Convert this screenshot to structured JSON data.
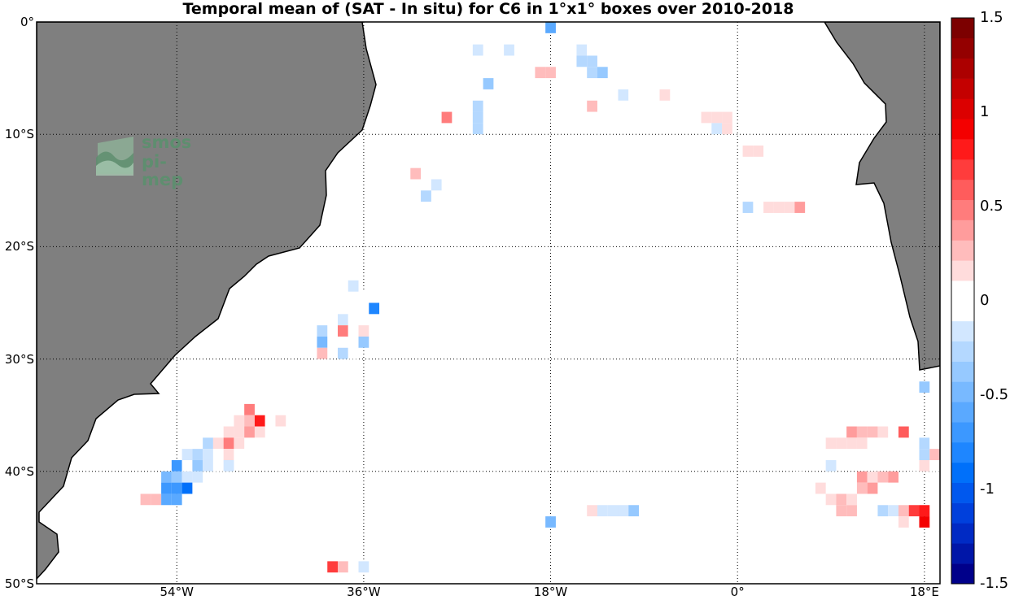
{
  "title": "Temporal mean of (SAT - In situ) for C6 in 1°x1° boxes over 2010-2018",
  "logo": {
    "line1": "smos",
    "line2": "pi-mep"
  },
  "axes": {
    "lat_ticks": [
      {
        "value": 0,
        "label": "0°"
      },
      {
        "value": -10,
        "label": "10°S"
      },
      {
        "value": -20,
        "label": "20°S"
      },
      {
        "value": -30,
        "label": "30°S"
      },
      {
        "value": -40,
        "label": "40°S"
      },
      {
        "value": -50,
        "label": "50°S"
      }
    ],
    "lon_ticks": [
      {
        "value": -54,
        "label": "54°W"
      },
      {
        "value": -36,
        "label": "36°W"
      },
      {
        "value": -18,
        "label": "18°W"
      },
      {
        "value": 0,
        "label": "0°"
      },
      {
        "value": 18,
        "label": "18°E"
      }
    ],
    "lon_range": [
      -67.5,
      19.5
    ],
    "lat_range": [
      -50,
      0
    ],
    "grid": true
  },
  "colorbar": {
    "range": [
      -1.5,
      1.5
    ],
    "ticks": [
      {
        "value": 1.5,
        "label": "1.5"
      },
      {
        "value": 1,
        "label": "1"
      },
      {
        "value": 0.5,
        "label": "0.5"
      },
      {
        "value": 0,
        "label": "0"
      },
      {
        "value": -0.5,
        "label": "-0.5"
      },
      {
        "value": -1,
        "label": "-1"
      },
      {
        "value": -1.5,
        "label": "-1.5"
      }
    ],
    "colors": [
      "#00008a",
      "#0016a8",
      "#002ac4",
      "#0040dc",
      "#0058ee",
      "#0070fa",
      "#1e86ff",
      "#3c98ff",
      "#5aa9ff",
      "#78b9ff",
      "#96c9ff",
      "#b4d8ff",
      "#d2e7ff",
      "#ffffff",
      "#ffffff",
      "#ffdcdc",
      "#ffbcbc",
      "#ff9c9c",
      "#ff7c7c",
      "#ff5c5c",
      "#ff3c3c",
      "#ff1a1a",
      "#f40000",
      "#dc0000",
      "#c40000",
      "#ac0000",
      "#940000",
      "#7c0000"
    ]
  },
  "chart_data": {
    "type": "heatmap",
    "title": "Temporal mean of (SAT - In situ) for C6 in 1°x1° boxes over 2010-2018",
    "xlabel": "",
    "ylabel": "",
    "units": "",
    "xlim": [
      -67.5,
      19.5
    ],
    "ylim": [
      -50,
      0
    ],
    "cells": [
      [
        -18,
        -0.5,
        -0.6
      ],
      [
        -24,
        -1.5,
        -0.1
      ],
      [
        -20,
        -1.5,
        -0.1
      ],
      [
        -16,
        -1.5,
        -0.1
      ],
      [
        -14,
        -1.5,
        -0.1
      ],
      [
        -25,
        -2.5,
        -0.2
      ],
      [
        -22,
        -2.5,
        -0.15
      ],
      [
        -15,
        -2.5,
        -0.2
      ],
      [
        -14,
        -2.5,
        -0.1
      ],
      [
        -26,
        -3.5,
        -0.1
      ],
      [
        -15,
        -3.5,
        -0.3
      ],
      [
        -14,
        -3.5,
        -0.3
      ],
      [
        -11,
        -3.5,
        0.1
      ],
      [
        -19,
        -4.5,
        0.3
      ],
      [
        -18,
        -4.5,
        0.3
      ],
      [
        -14,
        -4.5,
        -0.3
      ],
      [
        -13,
        -4.5,
        -0.4
      ],
      [
        -11,
        -4.5,
        0.1
      ],
      [
        -9,
        -4.5,
        -0.1
      ],
      [
        -24,
        -5.5,
        -0.4
      ],
      [
        -23,
        -6.5,
        -0.1
      ],
      [
        -11,
        -6.5,
        -0.2
      ],
      [
        -10,
        -6.5,
        -0.1
      ],
      [
        -7,
        -6.5,
        0.2
      ],
      [
        -25,
        -7.5,
        -0.3
      ],
      [
        -14,
        -7.5,
        0.3
      ],
      [
        -28,
        -8.5,
        0.5
      ],
      [
        -25,
        -8.5,
        -0.3
      ],
      [
        -3,
        -8.5,
        0.15
      ],
      [
        -2,
        -8.5,
        0.15
      ],
      [
        -1,
        -8.5,
        0.15
      ],
      [
        -25,
        -9.5,
        -0.3
      ],
      [
        -2,
        -9.5,
        -0.15
      ],
      [
        -1,
        -9.5,
        0.15
      ],
      [
        -30,
        -11.5,
        -0.1
      ],
      [
        1,
        -11.5,
        0.15
      ],
      [
        2,
        -11.5,
        0.15
      ],
      [
        -31,
        -13.5,
        0.3
      ],
      [
        -29,
        -14.5,
        -0.2
      ],
      [
        -30,
        -15.5,
        -0.3
      ],
      [
        1,
        -16.5,
        -0.3
      ],
      [
        3,
        -16.5,
        0.15
      ],
      [
        4,
        -16.5,
        0.15
      ],
      [
        5,
        -16.5,
        0.2
      ],
      [
        6,
        -16.5,
        0.4
      ],
      [
        -37,
        -23.5,
        -0.2
      ],
      [
        -36,
        -24.5,
        -0.1
      ],
      [
        -36,
        -25.5,
        -0.1
      ],
      [
        -35,
        -25.5,
        -0.8
      ],
      [
        -38,
        -26.5,
        -0.15
      ],
      [
        -37,
        -26.5,
        0.1
      ],
      [
        -36,
        -26.5,
        -0.1
      ],
      [
        -40,
        -27.5,
        -0.3
      ],
      [
        -38,
        -27.5,
        0.45
      ],
      [
        -37,
        -27.5,
        -0.1
      ],
      [
        -36,
        -27.5,
        0.15
      ],
      [
        -40,
        -28.5,
        -0.5
      ],
      [
        -37,
        -28.5,
        -0.1
      ],
      [
        -36,
        -28.5,
        -0.4
      ],
      [
        -40,
        -29.5,
        0.3
      ],
      [
        -38,
        -29.5,
        -0.3
      ],
      [
        -37,
        -29.5,
        -0.1
      ],
      [
        18,
        -32.5,
        -0.4
      ],
      [
        -47,
        -34.5,
        0.5
      ],
      [
        -48,
        -35.5,
        0.2
      ],
      [
        -47,
        -35.5,
        0.25
      ],
      [
        -46,
        -35.5,
        0.85
      ],
      [
        -45,
        -35.5,
        0.1
      ],
      [
        -44,
        -35.5,
        0.15
      ],
      [
        -50,
        -36.5,
        0.1
      ],
      [
        -49,
        -36.5,
        0.2
      ],
      [
        -48,
        -36.5,
        0.2
      ],
      [
        -47,
        -36.5,
        0.35
      ],
      [
        -46,
        -36.5,
        0.2
      ],
      [
        11,
        -36.5,
        0.4
      ],
      [
        12,
        -36.5,
        0.3
      ],
      [
        13,
        -36.5,
        0.3
      ],
      [
        14,
        -36.5,
        0.15
      ],
      [
        16,
        -36.5,
        0.6
      ],
      [
        -51,
        -37.5,
        -0.3
      ],
      [
        -50,
        -37.5,
        0.2
      ],
      [
        -49,
        -37.5,
        0.5
      ],
      [
        -48,
        -37.5,
        0.2
      ],
      [
        -46,
        -37.5,
        -0.1
      ],
      [
        9,
        -37.5,
        0.2
      ],
      [
        10,
        -37.5,
        0.2
      ],
      [
        11,
        -37.5,
        0.2
      ],
      [
        12,
        -37.5,
        0.15
      ],
      [
        13,
        -37.5,
        0.1
      ],
      [
        15,
        -37.5,
        0.1
      ],
      [
        18,
        -37.5,
        -0.3
      ],
      [
        19,
        -37.5,
        -0.1
      ],
      [
        -53,
        -38.5,
        -0.2
      ],
      [
        -52,
        -38.5,
        -0.3
      ],
      [
        -51,
        -38.5,
        -0.2
      ],
      [
        -50,
        -38.5,
        0.1
      ],
      [
        -49,
        -38.5,
        0.15
      ],
      [
        -48,
        -38.5,
        0.1
      ],
      [
        18,
        -38.5,
        -0.3
      ],
      [
        19,
        -38.5,
        0.3
      ],
      [
        -54,
        -39.5,
        -0.7
      ],
      [
        -53,
        -39.5,
        -0.1
      ],
      [
        -52,
        -39.5,
        -0.4
      ],
      [
        -51,
        -39.5,
        -0.2
      ],
      [
        -50,
        -39.5,
        -0.1
      ],
      [
        -49,
        -39.5,
        -0.2
      ],
      [
        9,
        -39.5,
        -0.2
      ],
      [
        18,
        -39.5,
        0.2
      ],
      [
        19,
        -39.5,
        -0.1
      ],
      [
        -55,
        -40.5,
        -0.5
      ],
      [
        -54,
        -40.5,
        -0.4
      ],
      [
        -53,
        -40.5,
        -0.2
      ],
      [
        -52,
        -40.5,
        -0.2
      ],
      [
        6,
        -40.5,
        -0.1
      ],
      [
        12,
        -40.5,
        0.4
      ],
      [
        13,
        -40.5,
        0.2
      ],
      [
        14,
        -40.5,
        0.3
      ],
      [
        15,
        -40.5,
        0.4
      ],
      [
        17,
        -40.5,
        -0.1
      ],
      [
        -55,
        -41.5,
        -0.7
      ],
      [
        -54,
        -41.5,
        -0.7
      ],
      [
        -53,
        -41.5,
        -0.95
      ],
      [
        8,
        -41.5,
        0.15
      ],
      [
        12,
        -41.5,
        0.25
      ],
      [
        13,
        -41.5,
        0.4
      ],
      [
        14,
        -41.5,
        0.1
      ],
      [
        -57,
        -42.5,
        0.3
      ],
      [
        -56,
        -42.5,
        0.3
      ],
      [
        -55,
        -42.5,
        -0.6
      ],
      [
        -54,
        -42.5,
        -0.6
      ],
      [
        9,
        -42.5,
        0.2
      ],
      [
        10,
        -42.5,
        0.3
      ],
      [
        11,
        -42.5,
        0.15
      ],
      [
        -14,
        -43.5,
        0.2
      ],
      [
        -13,
        -43.5,
        -0.2
      ],
      [
        -12,
        -43.5,
        -0.15
      ],
      [
        -11,
        -43.5,
        -0.15
      ],
      [
        -10,
        -43.5,
        -0.4
      ],
      [
        10,
        -43.5,
        0.3
      ],
      [
        11,
        -43.5,
        0.3
      ],
      [
        14,
        -43.5,
        -0.3
      ],
      [
        15,
        -43.5,
        -0.2
      ],
      [
        16,
        -43.5,
        0.3
      ],
      [
        17,
        -43.5,
        0.7
      ],
      [
        18,
        -43.5,
        0.8
      ],
      [
        -18,
        -44.5,
        -0.5
      ],
      [
        15,
        -44.5,
        -0.1
      ],
      [
        16,
        -44.5,
        0.2
      ],
      [
        18,
        -44.5,
        0.9
      ],
      [
        -39,
        -48.5,
        0.7
      ],
      [
        -38,
        -48.5,
        0.3
      ],
      [
        -36,
        -48.5,
        -0.15
      ]
    ]
  }
}
